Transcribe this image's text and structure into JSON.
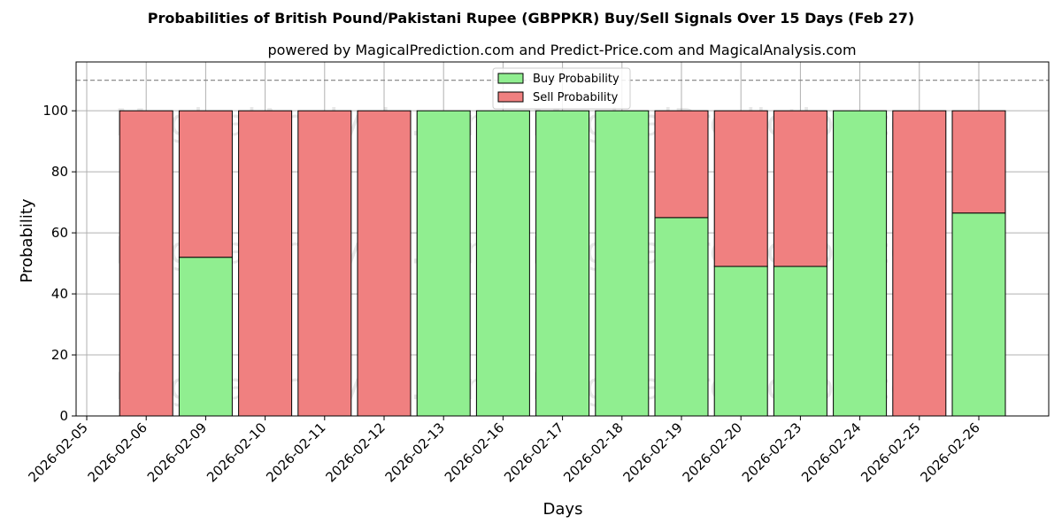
{
  "chart_data": {
    "type": "bar",
    "stacked": true,
    "title": "Probabilities of British Pound/Pakistani Rupee (GBPPKR) Buy/Sell Signals Over 15 Days (Feb 27)",
    "subtitle": "powered by MagicalPrediction.com and Predict-Price.com and MagicalAnalysis.com",
    "xlabel": "Days",
    "ylabel": "Probability",
    "ylim": [
      0,
      116
    ],
    "yticks": [
      0,
      20,
      40,
      60,
      80,
      100
    ],
    "x_ticks": [
      "2026-02-05",
      "2026-02-06",
      "2026-02-09",
      "2026-02-10",
      "2026-02-11",
      "2026-02-12",
      "2026-02-13",
      "2026-02-16",
      "2026-02-17",
      "2026-02-18",
      "2026-02-19",
      "2026-02-20",
      "2026-02-23",
      "2026-02-24",
      "2026-02-25",
      "2026-02-26"
    ],
    "categories": [
      "2026-02-06",
      "2026-02-09",
      "2026-02-10",
      "2026-02-11",
      "2026-02-12",
      "2026-02-13",
      "2026-02-16",
      "2026-02-17",
      "2026-02-18",
      "2026-02-19",
      "2026-02-20",
      "2026-02-23",
      "2026-02-24",
      "2026-02-25",
      "2026-02-26"
    ],
    "series": [
      {
        "name": "Buy Probability",
        "color": "#90ee90",
        "values": [
          0,
          52,
          0,
          0,
          0,
          100,
          100,
          100,
          100,
          65,
          49,
          49,
          100,
          0,
          66.5
        ]
      },
      {
        "name": "Sell Probability",
        "color": "#f08080",
        "values": [
          100,
          48,
          100,
          100,
          100,
          0,
          0,
          0,
          0,
          35,
          51,
          51,
          0,
          100,
          33.5
        ]
      }
    ],
    "reference_line": {
      "y": 110,
      "style": "dashed"
    },
    "grid": true,
    "legend_position": "top-center"
  },
  "watermarks": [
    "MagicalAnalysis.com",
    "MagicalPrediction.com"
  ]
}
